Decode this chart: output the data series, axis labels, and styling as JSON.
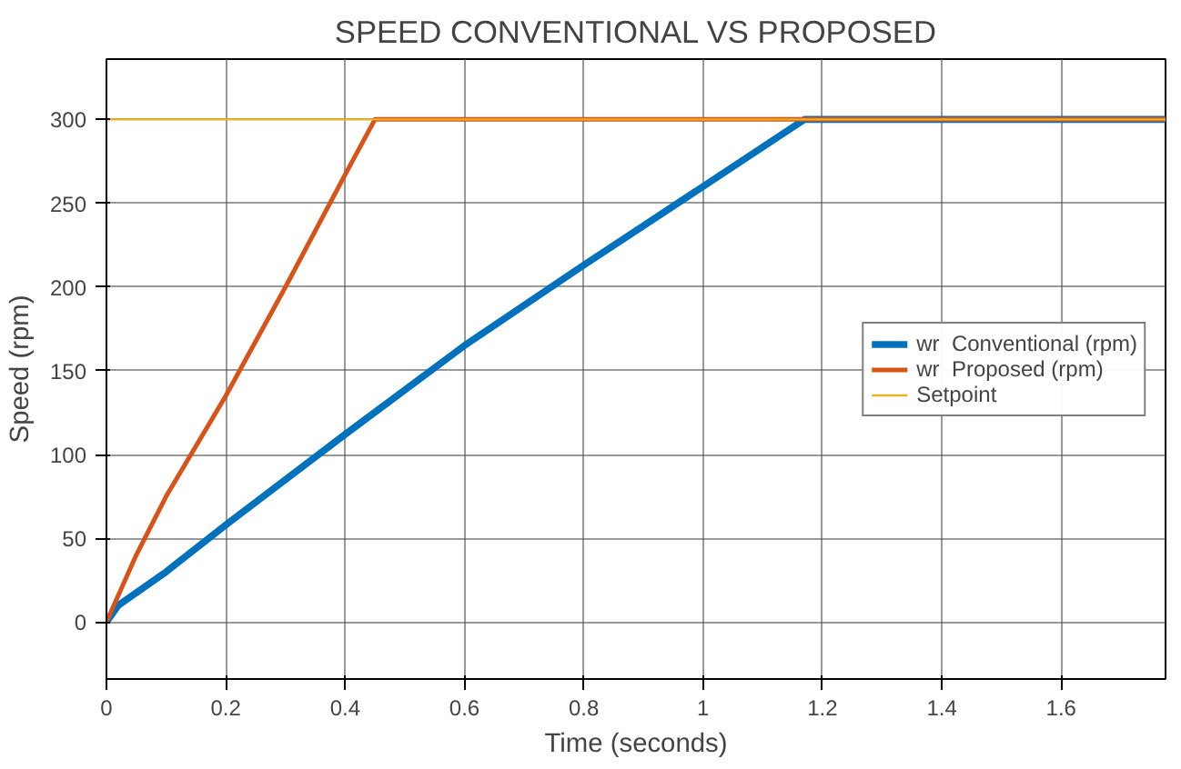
{
  "chart_data": {
    "type": "line",
    "title": "SPEED CONVENTIONAL VS PROPOSED",
    "xlabel": "Time (seconds)",
    "ylabel": "Speed (rpm)",
    "xlim": [
      0,
      1.775
    ],
    "ylim": [
      -34,
      336
    ],
    "xticks": [
      0,
      0.2,
      0.4,
      0.6,
      0.8,
      1,
      1.2,
      1.4,
      1.6
    ],
    "yticks": [
      0,
      50,
      100,
      150,
      200,
      250,
      300
    ],
    "grid": true,
    "legend": "right",
    "line_style": "solid",
    "series": [
      {
        "name": "wr  Conventional (rpm)",
        "color": "#0072bd",
        "x": [
          0,
          0.02,
          0.1,
          0.2,
          0.4,
          0.6,
          0.8,
          1.0,
          1.17,
          1.775
        ],
        "values": [
          0,
          10,
          30,
          58,
          112,
          165,
          213,
          260,
          300,
          300
        ]
      },
      {
        "name": "wr  Proposed (rpm)",
        "color": "#d95319",
        "x": [
          0,
          0.05,
          0.1,
          0.2,
          0.3,
          0.4,
          0.45,
          1.775
        ],
        "values": [
          0,
          40,
          75,
          135,
          200,
          267,
          300,
          300
        ]
      },
      {
        "name": "Setpoint",
        "color": "#edb120",
        "x": [
          0,
          1.775
        ],
        "values": [
          300,
          300
        ]
      }
    ]
  }
}
